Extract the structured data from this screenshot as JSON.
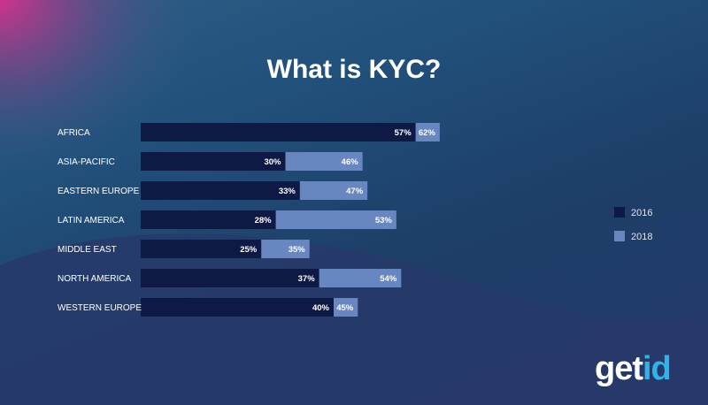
{
  "title": "What is KYC?",
  "logo": {
    "part1": "get",
    "part2": "id"
  },
  "colors": {
    "series2016": "#0e1a45",
    "series2018": "#6886c0",
    "accent": "#d8308a",
    "logo_blue": "#2fb4e8"
  },
  "chart_data": {
    "type": "bar",
    "orientation": "horizontal",
    "stacked": true,
    "title": "What is KYC?",
    "categories": [
      "AFRICA",
      "ASIA-PACIFIC",
      "EASTERN EUROPE",
      "LATIN AMERICA",
      "MIDDLE EAST",
      "NORTH AMERICA",
      "WESTERN EUROPE"
    ],
    "series": [
      {
        "name": "2016",
        "values": [
          57,
          30,
          33,
          28,
          25,
          37,
          40
        ],
        "labels": [
          "57%",
          "30%",
          "33%",
          "28%",
          "25%",
          "37%",
          "40%"
        ],
        "color": "#0e1a45"
      },
      {
        "name": "2018",
        "values": [
          62,
          46,
          47,
          53,
          35,
          54,
          45
        ],
        "labels": [
          "62%",
          "46%",
          "47%",
          "53%",
          "35%",
          "54%",
          "45%"
        ],
        "color": "#6886c0"
      }
    ],
    "value_unit": "%",
    "grid": false,
    "legend_position": "right"
  }
}
